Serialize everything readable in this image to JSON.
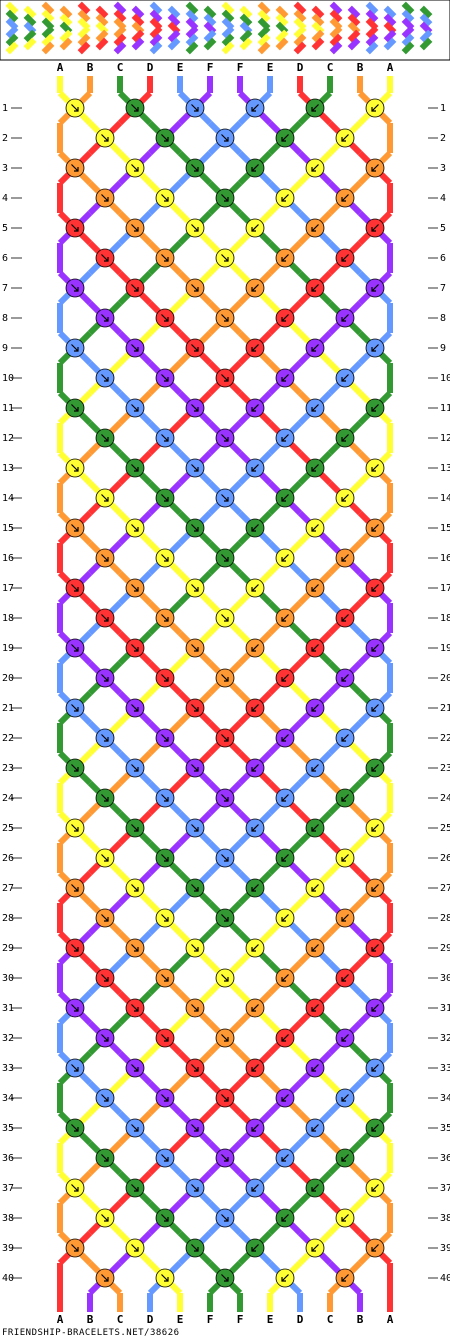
{
  "colors": {
    "yellow": "#ffff33",
    "orange": "#ff9933",
    "green": "#339933",
    "red": "#ff3333",
    "blue": "#6699ff",
    "purple": "#9933ff",
    "outline": "#000000"
  },
  "string_labels_top": [
    "A",
    "B",
    "C",
    "D",
    "E",
    "F",
    "F",
    "E",
    "D",
    "C",
    "B",
    "A"
  ],
  "string_labels_bottom": [
    "A",
    "B",
    "C",
    "D",
    "E",
    "F",
    "F",
    "E",
    "D",
    "C",
    "B",
    "A"
  ],
  "string_colors": [
    "yellow",
    "orange",
    "green",
    "red",
    "blue",
    "purple",
    "purple",
    "blue",
    "red",
    "green",
    "orange",
    "yellow"
  ],
  "row_numbers": [
    "1",
    "2",
    "3",
    "4",
    "5",
    "6",
    "7",
    "8",
    "9",
    "10",
    "11",
    "12",
    "13",
    "14",
    "15",
    "16",
    "17",
    "18",
    "19",
    "20",
    "21",
    "22",
    "23",
    "24",
    "25",
    "26",
    "27",
    "28",
    "29",
    "30",
    "31",
    "32",
    "33",
    "34",
    "35",
    "36",
    "37",
    "38",
    "39",
    "40"
  ],
  "footer_text": "FRIENDSHIP-BRACELETS.NET/38626",
  "knot_direction": "arrow-icon"
}
